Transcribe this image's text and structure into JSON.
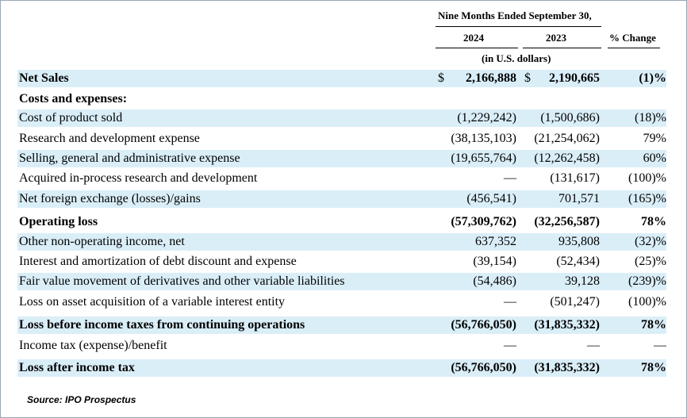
{
  "header": {
    "period": "Nine Months Ended September 30,",
    "year1": "2024",
    "year2": "2023",
    "change": "% Change",
    "units": "(in U.S. dollars)"
  },
  "rows": [
    {
      "label": "Net Sales",
      "v2024": "2,166,888",
      "v2023": "2,190,665",
      "change": "(1)%",
      "bold": true,
      "shade": true,
      "dollar": true
    },
    {
      "label": "Costs and expenses:",
      "v2024": "",
      "v2023": "",
      "change": "",
      "bold": true,
      "shade": false
    },
    {
      "label": "Cost of product sold",
      "v2024": "(1,229,242)",
      "v2023": "(1,500,686)",
      "change": "(18)%",
      "bold": false,
      "shade": true
    },
    {
      "label": "Research and development expense",
      "v2024": "(38,135,103)",
      "v2023": "(21,254,062)",
      "change": "79%",
      "bold": false,
      "shade": false
    },
    {
      "label": "Selling, general and administrative expense",
      "v2024": "(19,655,764)",
      "v2023": "(12,262,458)",
      "change": "60%",
      "bold": false,
      "shade": true
    },
    {
      "label": "Acquired in-process research and development",
      "v2024": "—",
      "v2023": "(131,617)",
      "change": "(100)%",
      "bold": false,
      "shade": false
    },
    {
      "label": "Net foreign exchange (losses)/gains",
      "v2024": "(456,541)",
      "v2023": "701,571",
      "change": "(165)%",
      "bold": false,
      "shade": true
    },
    {
      "label": "Operating loss",
      "v2024": "(57,309,762)",
      "v2023": "(32,256,587)",
      "change": "78%",
      "bold": true,
      "shade": false
    },
    {
      "label": "Other non-operating income, net",
      "v2024": "637,352",
      "v2023": "935,808",
      "change": "(32)%",
      "bold": false,
      "shade": true
    },
    {
      "label": "Interest and amortization of debt discount and expense",
      "v2024": "(39,154)",
      "v2023": "(52,434)",
      "change": "(25)%",
      "bold": false,
      "shade": false
    },
    {
      "label": "Fair value movement of derivatives and other variable liabilities",
      "v2024": "(54,486)",
      "v2023": "39,128",
      "change": "(239)%",
      "bold": false,
      "shade": true
    },
    {
      "label": "Loss on asset acquisition of a variable interest entity",
      "v2024": "—",
      "v2023": "(501,247)",
      "change": "(100)%",
      "bold": false,
      "shade": false
    },
    {
      "label": "Loss before income taxes from continuing operations",
      "v2024": "(56,766,050)",
      "v2023": "(31,835,332)",
      "change": "78%",
      "bold": true,
      "shade": true
    },
    {
      "label": "Income tax (expense)/benefit",
      "v2024": "—",
      "v2023": "—",
      "change": "—",
      "bold": false,
      "shade": false
    },
    {
      "label": "Loss after income tax",
      "v2024": "(56,766,050)",
      "v2023": "(31,835,332)",
      "change": "78%",
      "bold": true,
      "shade": true
    }
  ],
  "currency_symbol": "$",
  "source": "Source: IPO Prospectus"
}
